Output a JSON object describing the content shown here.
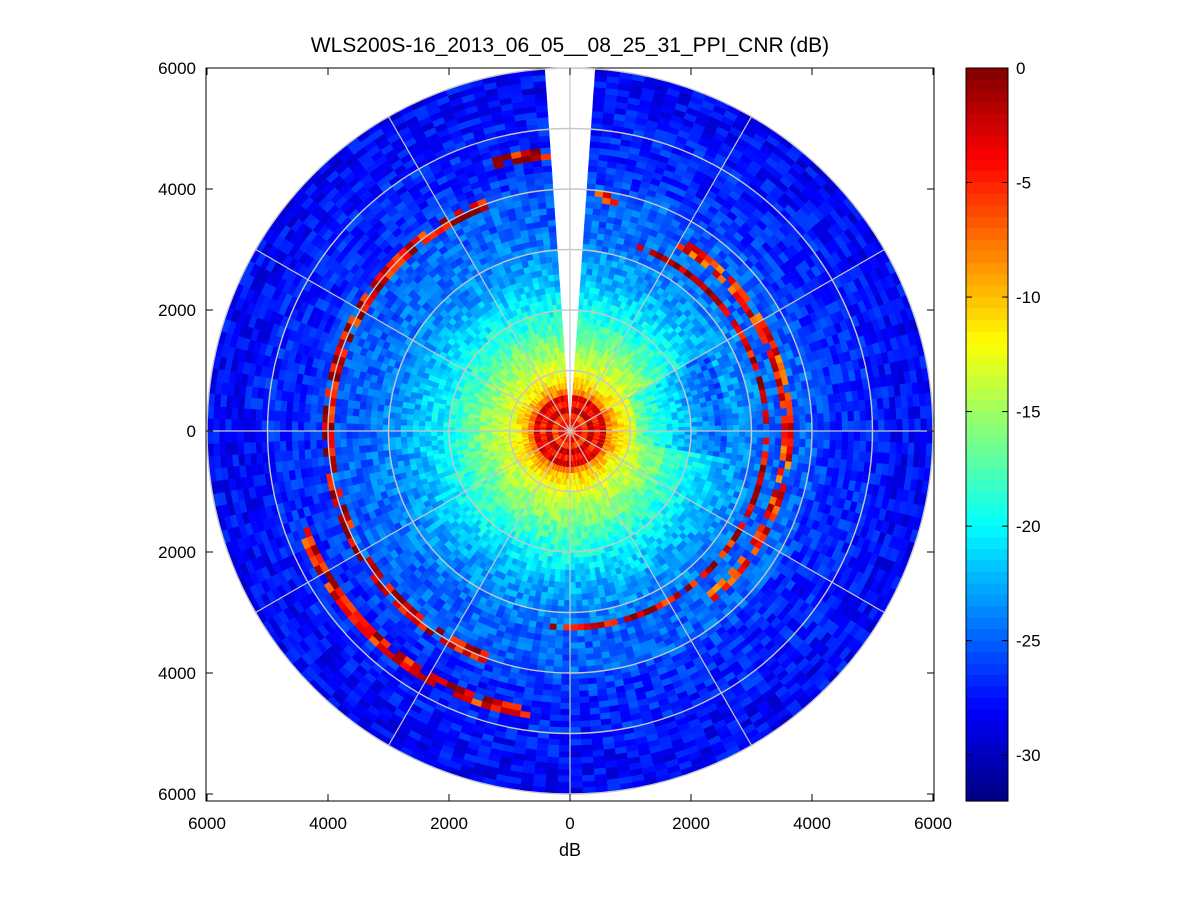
{
  "chart_data": {
    "type": "heatmap",
    "subtype": "polar-ppi",
    "title": "WLS200S-16_2013_06_05__08_25_31_PPI_CNR (dB)",
    "xlabel": "dB",
    "ylabel": "",
    "xlim": [
      -6000,
      6000
    ],
    "ylim": [
      -6000,
      6000
    ],
    "x_tick_labels": [
      "6000",
      "4000",
      "2000",
      "0",
      "2000",
      "4000",
      "6000"
    ],
    "y_tick_labels": [
      "6000",
      "4000",
      "2000",
      "0",
      "2000",
      "4000",
      "6000"
    ],
    "max_range": 6000,
    "range_rings": [
      1000,
      2000,
      3000,
      4000,
      5000,
      6000
    ],
    "spoke_angles_deg": [
      0,
      30,
      60,
      90,
      120,
      150,
      180,
      210,
      240,
      270,
      300,
      330
    ],
    "missing_sector_deg": [
      -4,
      4
    ],
    "colormap": "jet",
    "colorbar": {
      "range": [
        -32,
        0
      ],
      "tick_labels": [
        "0",
        "-5",
        "-10",
        "-15",
        "-20",
        "-25",
        "-30"
      ],
      "tick_values": [
        0,
        -5,
        -10,
        -15,
        -20,
        -25,
        -30
      ]
    },
    "cnr_profile": {
      "range_m": [
        0,
        120,
        250,
        350,
        450,
        550,
        650,
        800,
        1000,
        1300,
        1600,
        1900,
        2300,
        2700,
        3100,
        3500,
        3900,
        4000,
        4100,
        4500,
        5000,
        5500,
        6000
      ],
      "cnr_db": [
        -8,
        -3,
        -6,
        -2,
        -5,
        -3,
        -8,
        -11,
        -13,
        -15,
        -17,
        -19,
        -21,
        -23,
        -24,
        -25,
        -25,
        -25,
        -26,
        -27,
        -27,
        -28,
        -28
      ]
    },
    "bright_arcs": [
      {
        "radius_m": 4000,
        "from_deg": 200,
        "to_deg": 340,
        "cnr_db": -3
      },
      {
        "radius_m": 3250,
        "from_deg": 20,
        "to_deg": 185,
        "cnr_db": -3
      },
      {
        "radius_m": 3600,
        "from_deg": 30,
        "to_deg": 140,
        "cnr_db": -5
      },
      {
        "radius_m": 4700,
        "from_deg": 188,
        "to_deg": 250,
        "cnr_db": -4
      },
      {
        "radius_m": 4600,
        "from_deg": 345,
        "to_deg": 360,
        "cnr_db": -3
      },
      {
        "radius_m": 3900,
        "from_deg": 6,
        "to_deg": 12,
        "cnr_db": -4
      }
    ],
    "grid_color": "#c8c8c8"
  }
}
